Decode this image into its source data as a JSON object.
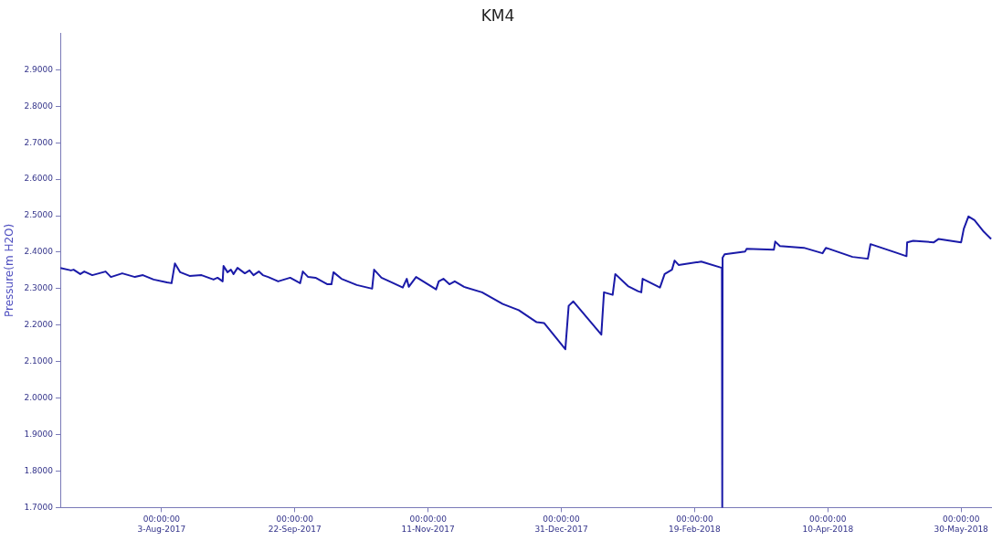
{
  "chart_data": {
    "type": "line",
    "title": "KM4",
    "ylabel": "Pressure(m H2O)",
    "color": "#1a1aa8",
    "x": [
      "2017-06-26",
      "2017-06-30",
      "2017-07-01",
      "2017-07-03T12:00",
      "2017-07-05",
      "2017-07-08",
      "2017-07-13",
      "2017-07-15",
      "2017-07-19T06:00",
      "2017-07-24",
      "2017-07-27",
      "2017-07-31",
      "2017-08-05",
      "2017-08-06T18:00",
      "2017-08-08",
      "2017-08-10",
      "2017-08-13T12:00",
      "2017-08-18",
      "2017-08-22T12:00",
      "2017-08-24",
      "2017-08-25T22:00",
      "2017-08-26T06:00",
      "2017-08-27T18:00",
      "2017-08-29",
      "2017-08-30",
      "2017-08-31T12:00",
      "2017-09-03T06:00",
      "2017-09-05",
      "2017-09-06T12:00",
      "2017-09-08T12:00",
      "2017-09-10",
      "2017-09-12",
      "2017-09-15T18:00",
      "2017-09-20T06:00",
      "2017-09-24",
      "2017-09-25",
      "2017-09-27",
      "2017-09-29T18:00",
      "2017-10-04T06:00",
      "2017-10-05T18:00",
      "2017-10-06T12:00",
      "2017-10-09T12:00",
      "2017-10-15T06:00",
      "2017-10-21",
      "2017-10-21T18:00",
      "2017-10-24T12:00",
      "2017-10-27T12:00",
      "2017-11-01T12:00",
      "2017-11-03",
      "2017-11-03T18:00",
      "2017-11-06T12:00",
      "2017-11-14",
      "2017-11-15",
      "2017-11-16T18:00",
      "2017-11-19",
      "2017-11-21",
      "2017-11-24T12:00",
      "2017-12-01T06:00",
      "2017-12-09",
      "2017-12-15",
      "2017-12-21T18:00",
      "2017-12-24T12:00",
      "2018-01-01T12:00",
      "2018-01-02T18:00",
      "2018-01-04T12:00",
      "2018-01-15",
      "2018-01-16",
      "2018-01-19T06:00",
      "2018-01-20T06:00",
      "2018-01-25",
      "2018-01-28T18:00",
      "2018-01-30",
      "2018-01-30T12:00",
      "2018-02-06",
      "2018-02-07T18:00",
      "2018-02-10T12:00",
      "2018-02-11T12:00",
      "2018-02-13",
      "2018-02-21T12:00",
      "2018-03-01T06:00",
      "2018-03-01T09:00",
      "2018-03-01T12:00",
      "2018-03-02T06:00",
      "2018-03-10",
      "2018-03-10T12:00",
      "2018-03-20T18:00",
      "2018-03-21T06:00",
      "2018-03-23",
      "2018-04-01",
      "2018-04-08",
      "2018-04-09T06:00",
      "2018-04-19T06:00",
      "2018-04-25",
      "2018-04-26",
      "2018-05-05T12:00",
      "2018-05-09T12:00",
      "2018-05-09T18:00",
      "2018-05-12",
      "2018-05-19T18:00",
      "2018-05-21T12:00",
      "2018-05-30",
      "2018-05-31",
      "2018-06-01T18:00",
      "2018-06-04",
      "2018-06-07T12:00",
      "2018-06-10T06:00"
    ],
    "values": [
      2.357,
      2.35,
      2.352,
      2.34,
      2.347,
      2.337,
      2.347,
      2.332,
      2.342,
      2.332,
      2.337,
      2.325,
      2.317,
      2.315,
      2.369,
      2.345,
      2.335,
      2.337,
      2.325,
      2.33,
      2.32,
      2.362,
      2.345,
      2.352,
      2.34,
      2.357,
      2.342,
      2.35,
      2.337,
      2.347,
      2.337,
      2.332,
      2.32,
      2.33,
      2.315,
      2.347,
      2.332,
      2.33,
      2.312,
      2.312,
      2.345,
      2.327,
      2.31,
      2.3,
      2.352,
      2.33,
      2.32,
      2.303,
      2.327,
      2.305,
      2.332,
      2.298,
      2.32,
      2.327,
      2.312,
      2.32,
      2.305,
      2.29,
      2.258,
      2.241,
      2.208,
      2.206,
      2.134,
      2.253,
      2.265,
      2.174,
      2.29,
      2.283,
      2.34,
      2.307,
      2.293,
      2.29,
      2.327,
      2.303,
      2.34,
      2.352,
      2.377,
      2.365,
      2.374,
      2.357,
      1.7,
      2.385,
      2.394,
      2.402,
      2.409,
      2.407,
      2.429,
      2.417,
      2.412,
      2.397,
      2.412,
      2.387,
      2.382,
      2.422,
      2.399,
      2.389,
      2.427,
      2.431,
      2.427,
      2.436,
      2.427,
      2.464,
      2.498,
      2.488,
      2.456,
      2.436
    ],
    "xlim": [
      "2017-06-26",
      "2018-06-10T14:00"
    ],
    "xticks": [
      {
        "value": "2017-08-03",
        "label": "00:00:00\n3-Aug-2017"
      },
      {
        "value": "2017-09-22",
        "label": "00:00:00\n22-Sep-2017"
      },
      {
        "value": "2017-11-11",
        "label": "00:00:00\n11-Nov-2017"
      },
      {
        "value": "2017-12-31",
        "label": "00:00:00\n31-Dec-2017"
      },
      {
        "value": "2018-02-19",
        "label": "00:00:00\n19-Feb-2018"
      },
      {
        "value": "2018-04-10",
        "label": "00:00:00\n10-Apr-2018"
      },
      {
        "value": "2018-05-30",
        "label": "00:00:00\n30-May-2018"
      }
    ],
    "ylim": [
      1.7,
      3.0
    ],
    "yticks": [
      {
        "value": 1.7,
        "label": "1.7000"
      },
      {
        "value": 1.8,
        "label": "1.8000"
      },
      {
        "value": 1.9,
        "label": "1.9000"
      },
      {
        "value": 2.0,
        "label": "2.0000"
      },
      {
        "value": 2.1,
        "label": "2.1000"
      },
      {
        "value": 2.2,
        "label": "2.2000"
      },
      {
        "value": 2.3,
        "label": "2.3000"
      },
      {
        "value": 2.4,
        "label": "2.4000"
      },
      {
        "value": 2.5,
        "label": "2.5000"
      },
      {
        "value": 2.6,
        "label": "2.6000"
      },
      {
        "value": 2.7,
        "label": "2.7000"
      },
      {
        "value": 2.8,
        "label": "2.8000"
      },
      {
        "value": 2.9,
        "label": "2.9000"
      }
    ],
    "grid": false,
    "legend": false,
    "marker": "none",
    "line_style": "solid"
  }
}
